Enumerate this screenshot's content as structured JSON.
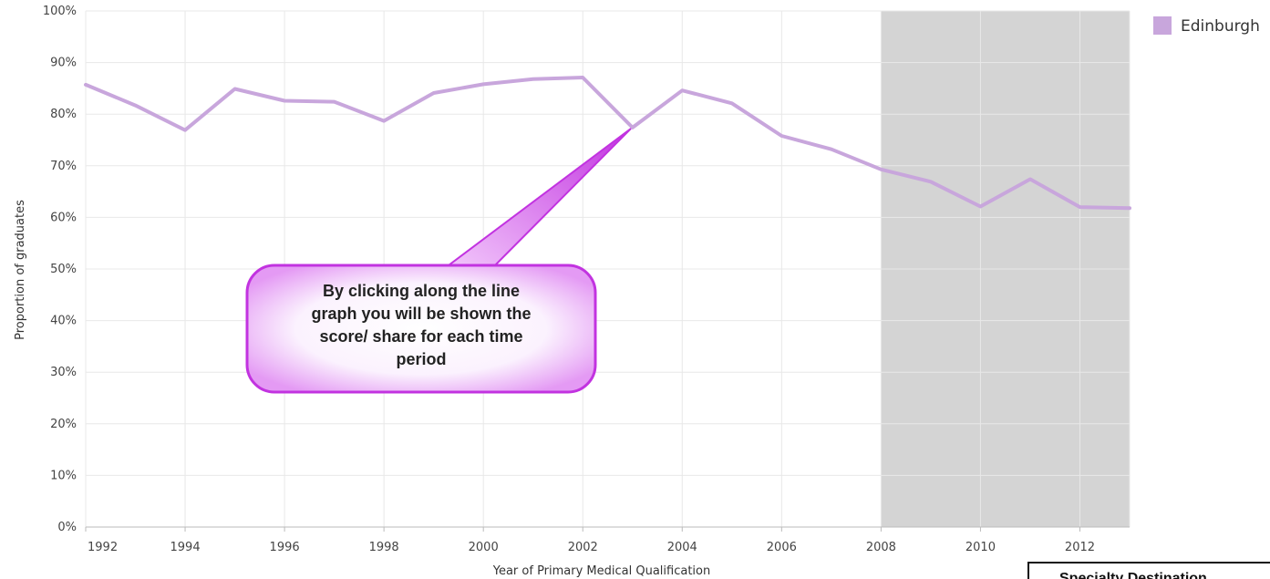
{
  "chart_data": {
    "type": "line",
    "xlabel": "Year of Primary Medical Qualification",
    "ylabel": "Proportion of graduates",
    "ylim": [
      0,
      100
    ],
    "y_ticks": [
      "0%",
      "10%",
      "20%",
      "30%",
      "40%",
      "50%",
      "60%",
      "70%",
      "80%",
      "90%",
      "100%"
    ],
    "x_ticks": [
      "1992",
      "1994",
      "1996",
      "1998",
      "2000",
      "2002",
      "2004",
      "2006",
      "2008",
      "2010",
      "2012"
    ],
    "x": [
      1992,
      1993,
      1994,
      1995,
      1996,
      1997,
      1998,
      1999,
      2000,
      2001,
      2002,
      2003,
      2004,
      2005,
      2006,
      2007,
      2008,
      2009,
      2010,
      2011,
      2012,
      2013
    ],
    "series": [
      {
        "name": "Edinburgh",
        "color": "#c8a6dc",
        "values": [
          85.7,
          81.7,
          76.9,
          84.9,
          82.6,
          82.4,
          78.7,
          84.1,
          85.8,
          86.8,
          87.1,
          77.4,
          84.6,
          82.1,
          75.8,
          73.2,
          69.3,
          66.9,
          62.1,
          67.4,
          62.0,
          61.8
        ]
      }
    ],
    "shaded_region": {
      "from": 2008,
      "to": 2013,
      "color": "#d4d4d4"
    },
    "grid": true,
    "legend": "top-right",
    "annotation": {
      "text_lines": [
        "By clicking along the line",
        "graph you will be shown the",
        "score/ share for each time",
        "period"
      ],
      "points_to_x": 2003,
      "border_color": "#c233e0"
    }
  },
  "corner_box": {
    "label": "Specialty Destination"
  }
}
